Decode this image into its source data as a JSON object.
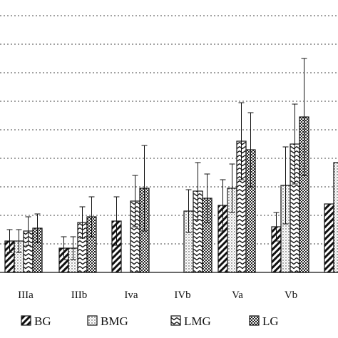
{
  "chart_data": {
    "type": "bar",
    "title": "",
    "xlabel": "",
    "ylabel": "",
    "ylim": [
      0,
      10
    ],
    "grid": "horizontal dotted",
    "legend_position": "bottom",
    "categories": [
      "IIIa",
      "IIIb",
      "Iva",
      "IVb",
      "Va",
      "Vb"
    ],
    "series": [
      {
        "name": "BG",
        "pattern": "diagonal-hatch",
        "values": [
          1.1,
          0.85,
          1.8,
          null,
          2.35,
          1.6
        ],
        "errors": [
          0.4,
          0.4,
          0.85,
          null,
          0.9,
          0.5
        ]
      },
      {
        "name": "BMG",
        "pattern": "sparse-dots",
        "values": [
          1.1,
          0.85,
          null,
          2.15,
          2.95,
          3.05
        ],
        "errors": [
          0.4,
          0.4,
          null,
          0.75,
          0.85,
          1.35
        ]
      },
      {
        "name": "LMG",
        "pattern": "chevron",
        "values": [
          1.45,
          1.75,
          2.5,
          2.85,
          4.6,
          4.5
        ],
        "errors": [
          0.5,
          0.55,
          0.9,
          1.0,
          1.35,
          1.4
        ]
      },
      {
        "name": "LG",
        "pattern": "dense-dots",
        "values": [
          1.55,
          1.95,
          2.95,
          2.6,
          4.3,
          5.45
        ],
        "errors": [
          0.5,
          0.7,
          1.5,
          0.85,
          1.3,
          2.05
        ]
      }
    ],
    "partial_category_values": {
      "BG": 2.4,
      "BMG": 3.85
    }
  },
  "legend": {
    "items": [
      {
        "label": "BG",
        "pattern": "diagonal-hatch"
      },
      {
        "label": "BMG",
        "pattern": "sparse-dots"
      },
      {
        "label": "LMG",
        "pattern": "chevron"
      },
      {
        "label": "LG",
        "pattern": "dense-dots"
      }
    ]
  }
}
